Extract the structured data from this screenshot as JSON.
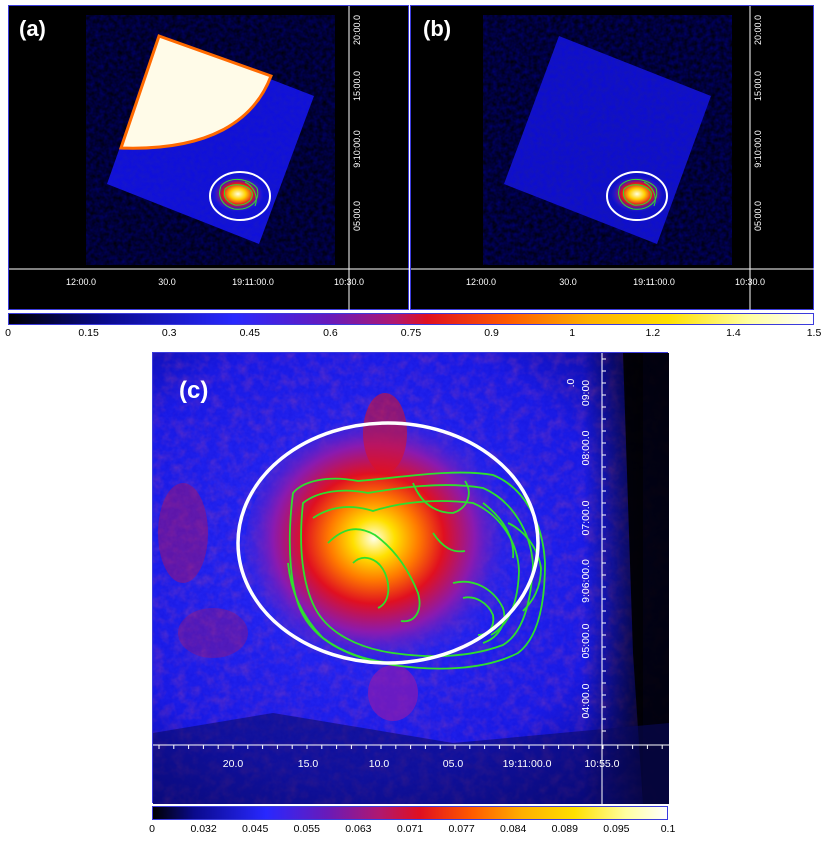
{
  "panels": {
    "a": {
      "label": "(a)",
      "ra_ticks": [
        "12:00.0",
        "30.0",
        "19:11:00.0",
        "10:30.0"
      ],
      "dec_ticks": [
        "20:00.0",
        "15:00.0",
        "9:10:00.0",
        "05:00.0"
      ]
    },
    "b": {
      "label": "(b)",
      "ra_ticks": [
        "12:00.0",
        "30.0",
        "19:11:00.0",
        "10:30.0"
      ],
      "dec_ticks": [
        "20:00.0",
        "15:00.0",
        "9:10:00.0",
        "05:00.0"
      ]
    },
    "c": {
      "label": "(c)",
      "ra_ticks": [
        "20.0",
        "15.0",
        "10.0",
        "05.0",
        "19:11:00.0",
        "10:55.0"
      ],
      "dec_ticks": [
        ".0",
        "09:00",
        "08:00.0",
        "07:00.0",
        "9:06:00.0",
        "05:00.0",
        "04:00.0"
      ]
    }
  },
  "colorbar_top": {
    "ticks": [
      "0",
      "0.15",
      "0.3",
      "0.45",
      "0.6",
      "0.75",
      "0.9",
      "1",
      "1.2",
      "1.4",
      "1.5"
    ]
  },
  "colorbar_bottom": {
    "ticks": [
      "0",
      "0.032",
      "0.045",
      "0.055",
      "0.063",
      "0.071",
      "0.077",
      "0.084",
      "0.089",
      "0.095",
      "0.1"
    ]
  },
  "colors": {
    "frame_border": "#3b3bdc",
    "contour": "#2ee02e",
    "ellipse": "#ffffff",
    "colormap": [
      "#000000",
      "#0a0a8c",
      "#2828ff",
      "#8a1ab0",
      "#e01020",
      "#ff7a00",
      "#ffd800",
      "#ffffa0",
      "#ffffff"
    ]
  }
}
